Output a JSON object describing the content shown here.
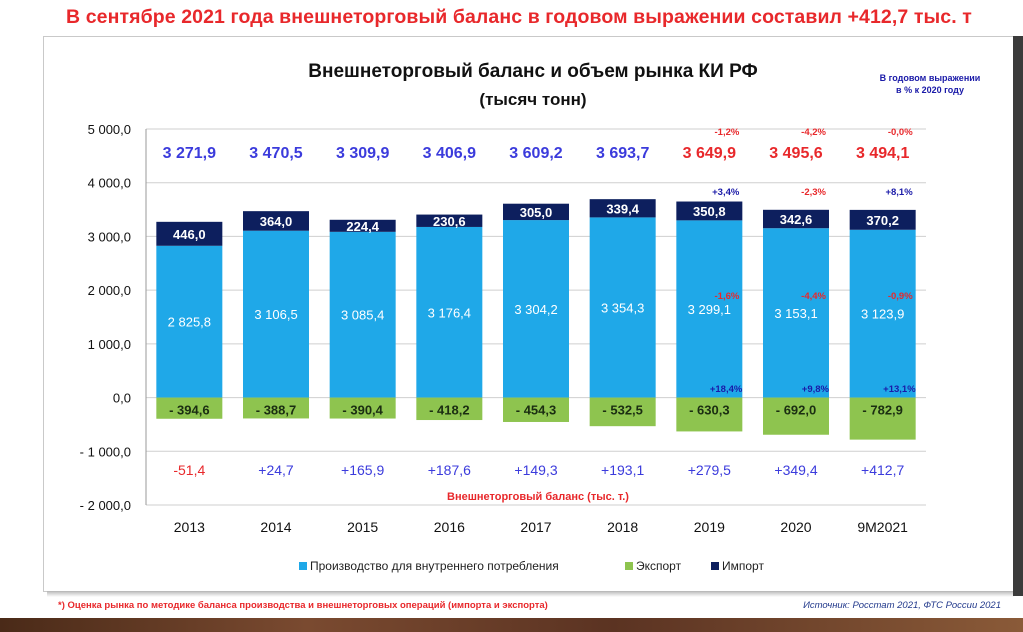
{
  "headline": "В сентябре 2021 года внешнеторговый баланс в годовом выражении составил  +412,7 тыс. т",
  "footnote": "*) Оценка рынка по методике баланса производства и внешнеторговых операций (импорта и экспорта)",
  "source": "Источник: Росстат 2021, ФТС России 2021",
  "colors": {
    "production": "#1fa8e8",
    "export": "#8ec44f",
    "import": "#0d1f5e",
    "market_positive": "#3b3bdc",
    "market_negative": "#e8282b",
    "growth_positive": "#1a1aa8",
    "growth_negative": "#e8282b",
    "headline": "#e8282b"
  },
  "chart_data": {
    "type": "bar",
    "title": "Внешнеторговый баланс и объем рынка КИ РФ",
    "subtitle": "(тысяч тонн)",
    "annual_note_line1": "В годовом выражении",
    "annual_note_line2": "в % к 2020 году",
    "balance_caption": "Внешнеторговый баланс (тыс. т.)",
    "categories": [
      "2013",
      "2014",
      "2015",
      "2016",
      "2017",
      "2018",
      "2019",
      "2020",
      "9М2021"
    ],
    "ylim": [
      -2000,
      5000
    ],
    "yticks": [
      5000,
      4000,
      3000,
      2000,
      1000,
      0,
      -1000,
      -2000
    ],
    "ytick_labels": [
      "5 000,0",
      "4 000,0",
      "3 000,0",
      "2 000,0",
      "1 000,0",
      "0,0",
      "- 1 000,0",
      "- 2 000,0"
    ],
    "grid": "horizontal",
    "legend_position": "bottom",
    "series": [
      {
        "name": "Производство для внутреннего потребления",
        "values": [
          2825.8,
          3106.5,
          3085.4,
          3176.4,
          3304.2,
          3354.3,
          3299.1,
          3153.1,
          3123.9
        ],
        "labels": [
          "2 825,8",
          "3 106,5",
          "3 085,4",
          "3 176,4",
          "3 304,2",
          "3 354,3",
          "3 299,1",
          "3 153,1",
          "3 123,9"
        ]
      },
      {
        "name": "Экспорт",
        "values": [
          -394.6,
          -388.7,
          -390.4,
          -418.2,
          -454.3,
          -532.5,
          -630.3,
          -692.0,
          -782.9
        ],
        "labels": [
          "- 394,6",
          "- 388,7",
          "- 390,4",
          "- 418,2",
          "- 454,3",
          "- 532,5",
          "- 630,3",
          "- 692,0",
          "- 782,9"
        ]
      },
      {
        "name": "Импорт",
        "values": [
          446.0,
          364.0,
          224.4,
          230.6,
          305.0,
          339.4,
          350.8,
          342.6,
          370.2
        ],
        "labels": [
          "446,0",
          "364,0",
          "224,4",
          "230,6",
          "305,0",
          "339,4",
          "350,8",
          "342,6",
          "370,2"
        ]
      }
    ],
    "market_volume": {
      "values": [
        3271.9,
        3470.5,
        3309.9,
        3406.9,
        3609.2,
        3693.7,
        3649.9,
        3495.6,
        3494.1
      ],
      "labels": [
        "3 271,9",
        "3 470,5",
        "3 309,9",
        "3 406,9",
        "3 609,2",
        "3 693,7",
        "3 649,9",
        "3 495,6",
        "3 494,1"
      ],
      "negative_growth_index": [
        6,
        7,
        8
      ]
    },
    "trade_balance": {
      "values": [
        -51.4,
        24.7,
        165.9,
        187.6,
        149.3,
        193.1,
        279.5,
        349.4,
        412.7
      ],
      "labels": [
        "-51,4",
        "+24,7",
        "+165,9",
        "+187,6",
        "+149,3",
        "+193,1",
        "+279,5",
        "+349,4",
        "+412,7"
      ]
    },
    "growth_annotations": [
      {
        "index": 6,
        "market": "-1,2%",
        "import": "+3,4%",
        "production": "-1,6%",
        "export": "+18,4%"
      },
      {
        "index": 7,
        "market": "-4,2%",
        "import": "-2,3%",
        "production": "-4,4%",
        "export": "+9,8%"
      },
      {
        "index": 8,
        "market": "-0,0%",
        "import": "+8,1%",
        "production": "-0,9%",
        "export": "+13,1%"
      }
    ]
  }
}
